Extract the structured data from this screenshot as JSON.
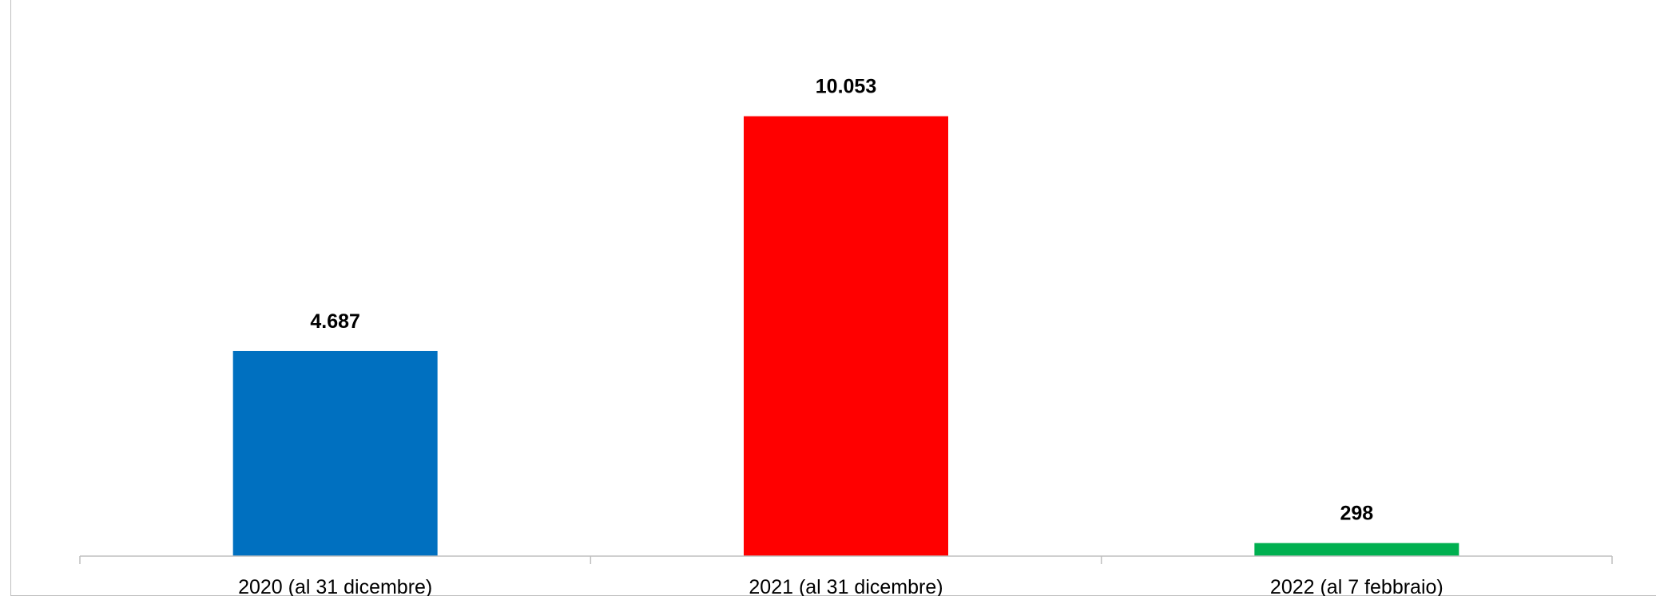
{
  "chart_data": {
    "type": "bar",
    "title": "",
    "xlabel": "",
    "ylabel": "",
    "categories": [
      "2020 (al 31 dicembre)",
      "2021 (al 31 dicembre)",
      "2022 (al 7 febbraio)"
    ],
    "values": [
      4687,
      10053,
      298
    ],
    "data_labels": [
      "4.687",
      "10.053",
      "298"
    ],
    "bar_colors": [
      "#0070C0",
      "#FF0000",
      "#00B050"
    ],
    "ylim": [
      0,
      11500
    ],
    "grid": false,
    "legend": "none",
    "axis_color": "#BFBFBF",
    "frame_color": "#BFBFBF"
  }
}
